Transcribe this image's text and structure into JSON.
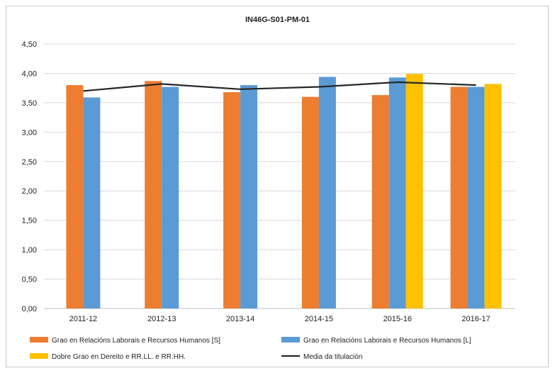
{
  "chart_data": {
    "type": "bar",
    "title": "IN46G-S01-PM-01",
    "categories": [
      "2011-12",
      "2012-13",
      "2013-14",
      "2014-15",
      "2015-16",
      "2016-17"
    ],
    "ylim": [
      0,
      4.5
    ],
    "yticks": [
      "0,00",
      "0,50",
      "1,00",
      "1,50",
      "2,00",
      "2,50",
      "3,00",
      "3,50",
      "4,00",
      "4,50"
    ],
    "grid": true,
    "legend_position": "bottom",
    "series": [
      {
        "name": "Grao en Relacións Laborais e Recursos Humanos [S]",
        "type": "bar",
        "color": "#ED7D31",
        "values": [
          3.8,
          3.87,
          3.68,
          3.6,
          3.63,
          3.77
        ]
      },
      {
        "name": "Grao en Relacións Laborais e Recursos Humanos [L]",
        "type": "bar",
        "color": "#5B9BD5",
        "values": [
          3.59,
          3.77,
          3.8,
          3.94,
          3.93,
          3.77
        ]
      },
      {
        "name": "Dobre Grao en Dereito e RR.LL. e RR.HH.",
        "type": "bar",
        "color": "#FFC000",
        "values": [
          null,
          null,
          null,
          null,
          3.99,
          3.82
        ]
      },
      {
        "name": "Media da titulación",
        "type": "line",
        "color": "#262626",
        "values": [
          3.7,
          3.82,
          3.73,
          3.77,
          3.85,
          3.8
        ]
      }
    ]
  }
}
